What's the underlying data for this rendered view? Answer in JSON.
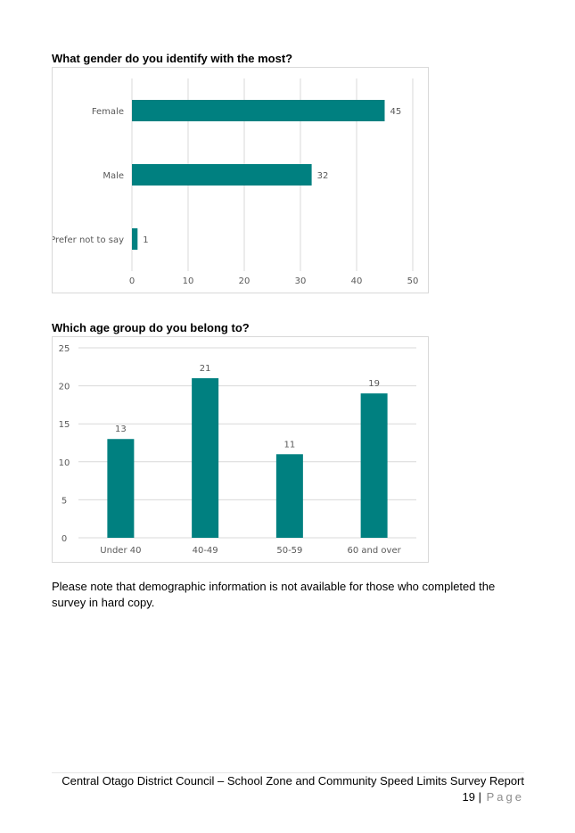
{
  "gender_section": {
    "heading": "What gender do you identify with the most?"
  },
  "age_section": {
    "heading": "Which age group do you belong to?"
  },
  "note": "Please note that demographic information is not available for those who completed the survey in hard copy.",
  "footer": {
    "title": "Central Otago District Council – School Zone and Community Speed Limits Survey Report",
    "page_number": "19",
    "separator": "|",
    "page_word": "Page"
  },
  "colors": {
    "bar": "#008080",
    "grid": "#d9d9d9",
    "axis_text": "#595959"
  },
  "chart_data": [
    {
      "type": "bar",
      "orientation": "horizontal",
      "categories": [
        "Female",
        "Male",
        "Prefer not to say"
      ],
      "values": [
        45,
        32,
        1
      ],
      "xlim": [
        0,
        50
      ],
      "ticks": [
        0,
        10,
        20,
        30,
        40,
        50
      ],
      "grid": true,
      "data_labels": true
    },
    {
      "type": "bar",
      "orientation": "vertical",
      "categories": [
        "Under 40",
        "40-49",
        "50-59",
        "60 and over"
      ],
      "values": [
        13,
        21,
        11,
        19
      ],
      "ylim": [
        0,
        25
      ],
      "ticks": [
        0,
        5,
        10,
        15,
        20,
        25
      ],
      "grid": true,
      "data_labels": true
    }
  ]
}
